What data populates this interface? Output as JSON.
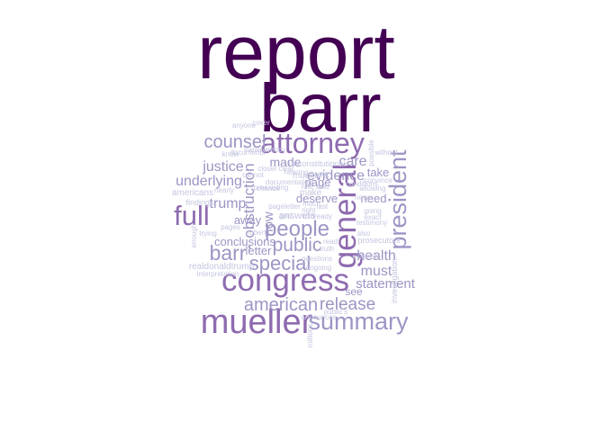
{
  "chart_data": {
    "type": "wordcloud",
    "color_scale": [
      "#440154",
      "#8e6bb0",
      "#9c95c5",
      "#c4c6e0"
    ],
    "words": [
      {
        "text": "report",
        "freq": 100
      },
      {
        "text": "barr",
        "freq": 90
      },
      {
        "text": "mueller",
        "freq": 44
      },
      {
        "text": "congress",
        "freq": 40
      },
      {
        "text": "general",
        "freq": 40
      },
      {
        "text": "attorney",
        "freq": 37
      },
      {
        "text": "full",
        "freq": 35
      },
      {
        "text": "summary",
        "freq": 30
      },
      {
        "text": "president",
        "freq": 30
      },
      {
        "text": "people",
        "freq": 27
      },
      {
        "text": "barr’",
        "freq": 26
      },
      {
        "text": "special",
        "freq": 24
      },
      {
        "text": "public",
        "freq": 23
      },
      {
        "text": "american",
        "freq": 22
      },
      {
        "text": "counsel",
        "freq": 21
      },
      {
        "text": "release",
        "freq": 20
      },
      {
        "text": "obstruction",
        "freq": 18
      },
      {
        "text": "evidence",
        "freq": 17
      },
      {
        "text": "must",
        "freq": 17
      },
      {
        "text": "justice",
        "freq": 16
      },
      {
        "text": "trump",
        "freq": 16
      },
      {
        "text": "underlying",
        "freq": 16
      },
      {
        "text": "care",
        "freq": 16
      },
      {
        "text": "health",
        "freq": 16
      },
      {
        "text": "now",
        "freq": 15
      },
      {
        "text": "statement",
        "freq": 15
      },
      {
        "text": "made",
        "freq": 14
      },
      {
        "text": "conclusions",
        "freq": 13
      },
      {
        "text": "letter",
        "freq": 13
      },
      {
        "text": "away",
        "freq": 12
      },
      {
        "text": "deserve",
        "freq": 12
      },
      {
        "text": "page",
        "freq": 12
      },
      {
        "text": "need",
        "freq": 12
      },
      {
        "text": "take",
        "freq": 12
      },
      {
        "text": "see",
        "freq": 11
      },
      {
        "text": "answers",
        "freq": 10
      },
      {
        "text": "make",
        "freq": 9
      },
      {
        "text": "mueller’s",
        "freq": 9
      },
      {
        "text": "americans",
        "freq": 8
      },
      {
        "text": "realdonaldtrump",
        "freq": 8
      },
      {
        "text": "findings",
        "freq": 7
      },
      {
        "text": "investigation",
        "freq": 7
      },
      {
        "text": "prosecutors",
        "freq": 7
      },
      {
        "text": "unconstitutional",
        "freq": 7
      },
      {
        "text": "documents",
        "freq": 6
      },
      {
        "text": "documentation",
        "freq": 6
      },
      {
        "text": "nearly",
        "freq": 6
      },
      {
        "text": "robert",
        "freq": 6
      },
      {
        "text": "questions",
        "freq": 6
      },
      {
        "text": "without",
        "freq": 6
      },
      {
        "text": "possible",
        "freq": 6
      },
      {
        "text": "ongoing",
        "freq": 6
      },
      {
        "text": "transparency",
        "freq": 6
      },
      {
        "text": "millions",
        "freq": 6
      },
      {
        "text": "interpretation",
        "freq": 6
      },
      {
        "text": "read",
        "freq": 6
      },
      {
        "text": "closer",
        "freq": 6
      },
      {
        "text": "hearing",
        "freq": 6
      },
      {
        "text": "trying",
        "freq": 6
      },
      {
        "text": "enough",
        "freq": 6
      },
      {
        "text": "allowing",
        "freq": 6
      },
      {
        "text": "anyone",
        "freq": 6
      },
      {
        "text": "convince",
        "freq": 6
      },
      {
        "text": "testimony",
        "freq": 6
      },
      {
        "text": "available",
        "freq": 6
      },
      {
        "text": "right",
        "freq": 6
      },
      {
        "text": "ready",
        "freq": 6
      },
      {
        "text": "truth",
        "freq": 6
      },
      {
        "text": "pages",
        "freq": 6
      },
      {
        "text": "going",
        "freq": 6
      },
      {
        "text": "know",
        "freq": 6
      },
      {
        "text": "never",
        "freq": 6
      },
      {
        "text": "exact",
        "freq": 6
      },
      {
        "text": "last",
        "freq": 6
      },
      {
        "text": "much",
        "freq": 6
      },
      {
        "text": "cover",
        "freq": 6
      },
      {
        "text": "gop",
        "freq": 6
      },
      {
        "text": "said",
        "freq": 6
      },
      {
        "text": "told",
        "freq": 6
      },
      {
        "text": "chance",
        "freq": 6
      },
      {
        "text": "public’s",
        "freq": 6
      },
      {
        "text": "cannot",
        "freq": 6
      },
      {
        "text": "clear",
        "freq": 6
      },
      {
        "text": "announces",
        "freq": 6
      },
      {
        "text": "preexisting",
        "freq": 6
      },
      {
        "text": "pageletter",
        "freq": 6
      },
      {
        "text": "conditions",
        "freq": 6
      },
      {
        "text": "also",
        "freq": 6
      },
      {
        "text": "rule",
        "freq": 6
      },
      {
        "text": "act",
        "freq": 6
      }
    ]
  }
}
